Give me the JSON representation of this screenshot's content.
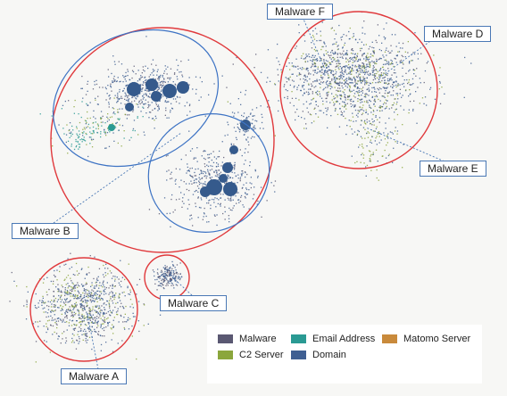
{
  "labels": {
    "malware_a": "Malware A",
    "malware_b": "Malware B",
    "malware_c": "Malware C",
    "malware_d": "Malware D",
    "malware_e": "Malware E",
    "malware_f": "Malware F"
  },
  "legend": [
    {
      "label": "Malware",
      "color": "#5a5872"
    },
    {
      "label": "Email Address",
      "color": "#2a9a93"
    },
    {
      "label": "Matomo Server",
      "color": "#c98a3b"
    },
    {
      "label": "C2 Server",
      "color": "#8ba63c"
    },
    {
      "label": "Domain",
      "color": "#3f5f92"
    }
  ],
  "colors": {
    "cluster_circle": "#e0393c",
    "subgroup_ellipse": "#3d73c4",
    "callout_line": "#4a78b5"
  }
}
